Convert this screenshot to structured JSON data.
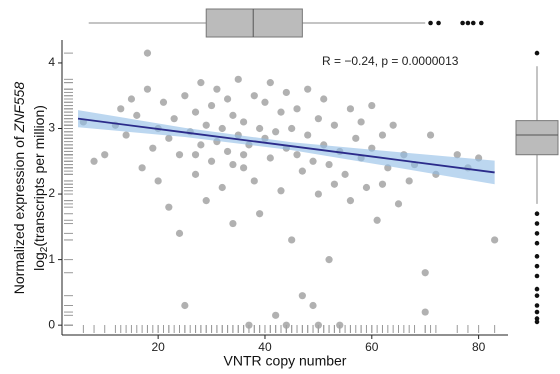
{
  "chart_data": {
    "type": "scatter",
    "x_label": "VNTR copy number",
    "y_label_line1": "Normalized expression of ",
    "y_label_gene": "ZNF558",
    "y_label_log": "log",
    "y_label_sub": "2",
    "y_label_rest": "(transcripts per million)",
    "annotation": "R = −0.24, p = 0.0000013",
    "xlim": [
      2,
      85.5
    ],
    "ylim": [
      -0.15,
      4.35
    ],
    "xticks": [
      20,
      40,
      60,
      80
    ],
    "yticks": [
      0,
      1,
      2,
      3,
      4
    ],
    "color": "#a3a3a3",
    "x": [
      6,
      8,
      10,
      12,
      13,
      14,
      15,
      16,
      17,
      18,
      18,
      19,
      20,
      20,
      21,
      22,
      22,
      23,
      24,
      24,
      25,
      25,
      26,
      27,
      27,
      28,
      28,
      29,
      29,
      30,
      30,
      31,
      31,
      32,
      32,
      33,
      33,
      34,
      34,
      35,
      35,
      36,
      36,
      37,
      37,
      38,
      38,
      39,
      39,
      40,
      40,
      41,
      41,
      42,
      42,
      43,
      43,
      44,
      44,
      45,
      45,
      46,
      46,
      47,
      47,
      48,
      48,
      49,
      49,
      50,
      50,
      51,
      51,
      52,
      52,
      53,
      54,
      54,
      55,
      56,
      56,
      57,
      58,
      59,
      60,
      60,
      61,
      62,
      63,
      64,
      65,
      66,
      67,
      68,
      70,
      70,
      71,
      72,
      76,
      78,
      80,
      83,
      44,
      50,
      36,
      34,
      27,
      53,
      58,
      62
    ],
    "values": [
      3.1,
      2.5,
      2.6,
      3.05,
      3.3,
      2.9,
      3.45,
      3.2,
      2.4,
      4.15,
      3.6,
      2.7,
      3.0,
      2.2,
      3.4,
      2.85,
      1.8,
      3.15,
      2.6,
      1.4,
      3.5,
      0.3,
      2.95,
      3.25,
      2.3,
      3.7,
      2.75,
      1.9,
      3.05,
      2.5,
      3.35,
      2.8,
      3.6,
      2.1,
      3.0,
      3.45,
      2.65,
      1.55,
      3.2,
      2.9,
      3.75,
      2.4,
      3.1,
      0.0,
      2.75,
      3.5,
      2.2,
      3.0,
      1.7,
      2.85,
      3.4,
      2.55,
      3.7,
      2.95,
      0.15,
      3.25,
      2.05,
      2.7,
      3.55,
      3.0,
      1.3,
      2.6,
      3.3,
      2.35,
      0.45,
      2.9,
      3.6,
      2.5,
      0.3,
      3.15,
      2.0,
      2.75,
      3.45,
      1.0,
      2.45,
      3.05,
      2.65,
      0.0,
      2.3,
      3.3,
      1.9,
      2.85,
      2.55,
      2.1,
      3.35,
      2.7,
      1.6,
      2.9,
      2.4,
      3.05,
      1.85,
      2.6,
      2.2,
      2.45,
      0.8,
      0.2,
      2.9,
      2.3,
      2.6,
      2.4,
      2.55,
      1.3,
      0.0,
      0.0,
      2.6,
      2.45,
      2.6,
      2.15,
      3.1,
      2.15
    ],
    "fit": {
      "color": "#2b2b8a",
      "band_color": "#8fbde6",
      "x": [
        5,
        25,
        45,
        65,
        83
      ],
      "y": [
        3.15,
        2.94,
        2.73,
        2.52,
        2.33
      ],
      "lower": [
        3.02,
        2.87,
        2.67,
        2.4,
        2.15
      ],
      "upper": [
        3.28,
        3.01,
        2.79,
        2.64,
        2.51
      ]
    },
    "x_box": {
      "whisker_low": 7,
      "q1": 29,
      "median": 37.8,
      "q3": 47,
      "whisker_high": 70,
      "outliers": [
        71,
        72.5,
        77,
        78,
        79,
        80.5
      ]
    },
    "y_box": {
      "whisker_low": 1.85,
      "q1": 2.6,
      "median": 2.9,
      "q3": 3.12,
      "whisker_high": 3.95,
      "outliers": [
        4.15,
        1.7,
        1.55,
        1.4,
        1.25,
        1.05,
        0.9,
        0.75,
        0.55,
        0.45,
        0.3,
        0.2,
        0.1,
        0.05
      ]
    }
  }
}
